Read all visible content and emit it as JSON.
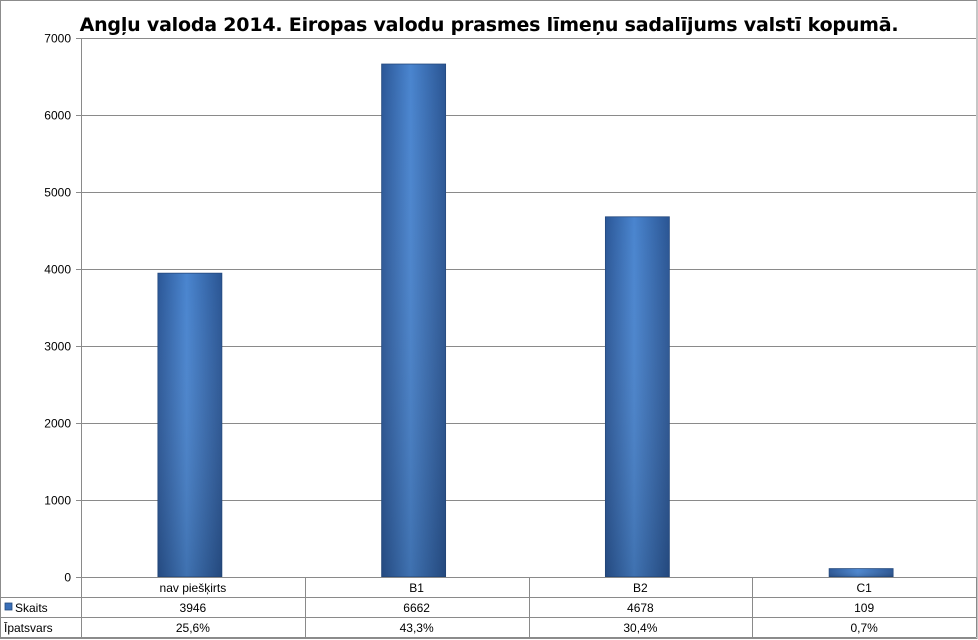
{
  "chart_data": {
    "type": "bar",
    "title": "Angļu valoda 2014. Eiropas valodu prasmes līmeņu sadalījums valstī kopumā.",
    "categories": [
      "nav piešķirts",
      "B1",
      "B2",
      "C1"
    ],
    "series": [
      {
        "name": "Skaits",
        "values": [
          3946,
          6662,
          4678,
          109
        ],
        "color": "#3a6fb8"
      }
    ],
    "table_rows": [
      {
        "label": "Skaits",
        "values": [
          "3946",
          "6662",
          "4678",
          "109"
        ],
        "has_legend_key": true
      },
      {
        "label": "Īpatsvars",
        "values": [
          "25,6%",
          "43,3%",
          "30,4%",
          "0,7%"
        ],
        "has_legend_key": false
      }
    ],
    "ylim": [
      0,
      7000
    ],
    "yticks": [
      0,
      1000,
      2000,
      3000,
      4000,
      5000,
      6000,
      7000
    ],
    "grid": true,
    "legend": "data-table"
  }
}
